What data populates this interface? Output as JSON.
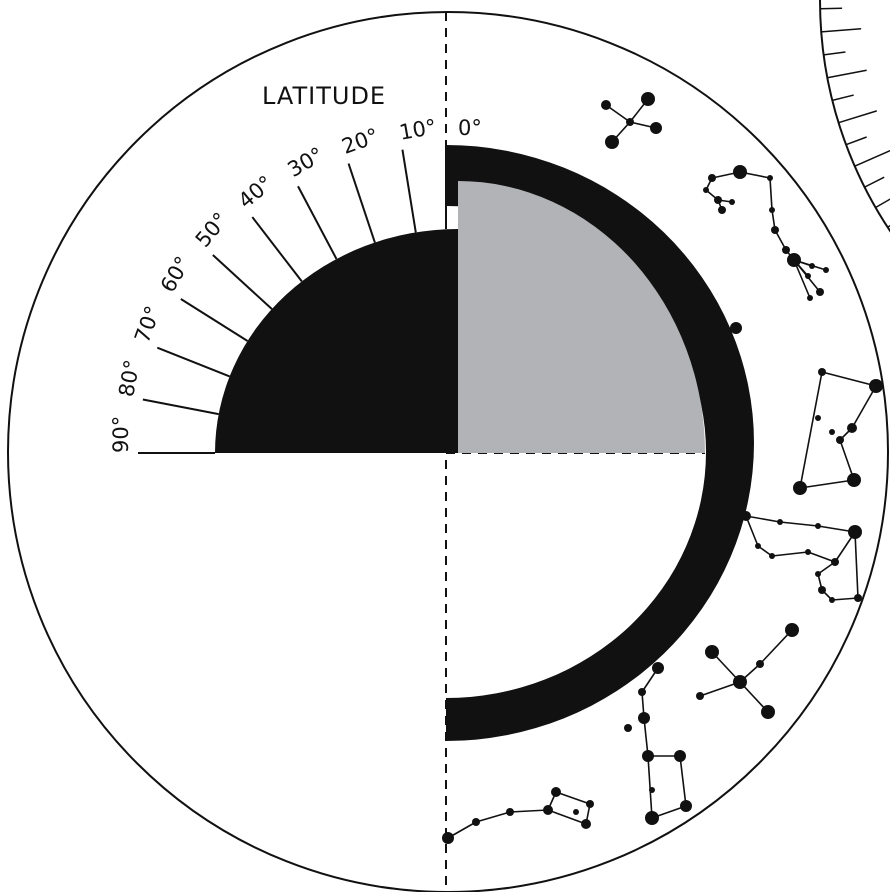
{
  "title": "LATITUDE",
  "latitude_labels": [
    "0°",
    "10°",
    "20°",
    "30°",
    "40°",
    "50°",
    "60°",
    "70°",
    "80°",
    "90°"
  ],
  "colors": {
    "ink": "#111111",
    "sky_window": "#b2b3b6",
    "paper": "#ffffff"
  },
  "icons": [
    "constellation-icon"
  ]
}
